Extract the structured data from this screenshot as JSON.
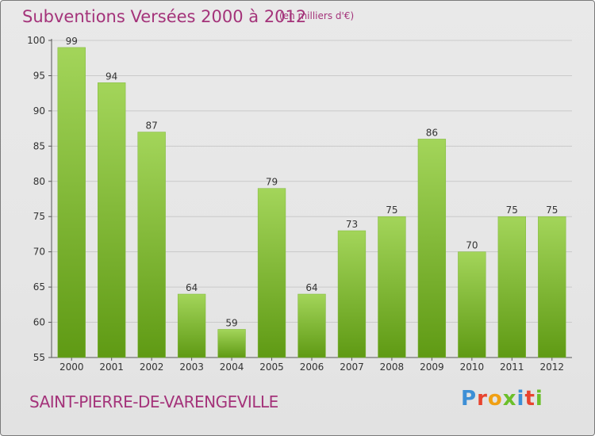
{
  "header": {
    "title": "Subventions Versées 2000 à 2012",
    "unit": "(en milliers d'€)"
  },
  "footer": {
    "commune": "SAINT-PIERRE-DE-VARENGEVILLE",
    "logo_letters": [
      "P",
      "r",
      "o",
      "x",
      "i",
      "t",
      "i"
    ]
  },
  "colors": {
    "title": "#a4337a",
    "bar_light": "#a3d55a",
    "bar_dark": "#5f9a14",
    "logo_blue": "#3d8fd6",
    "logo_orange": "#f0a014",
    "logo_green": "#6bbf2a",
    "logo_red": "#e8442f"
  },
  "chart_data": {
    "type": "bar",
    "title": "Subventions Versées 2000 à 2012",
    "subtitle": "(en milliers d'€)",
    "categories": [
      "2000",
      "2001",
      "2002",
      "2003",
      "2004",
      "2005",
      "2006",
      "2007",
      "2008",
      "2009",
      "2010",
      "2011",
      "2012"
    ],
    "values": [
      99,
      94,
      87,
      64,
      59,
      79,
      64,
      73,
      75,
      86,
      70,
      75,
      75
    ],
    "ylim": [
      55,
      100
    ],
    "yticks": [
      55,
      60,
      65,
      70,
      75,
      80,
      85,
      90,
      95,
      100
    ],
    "grid": true,
    "legend": false
  }
}
